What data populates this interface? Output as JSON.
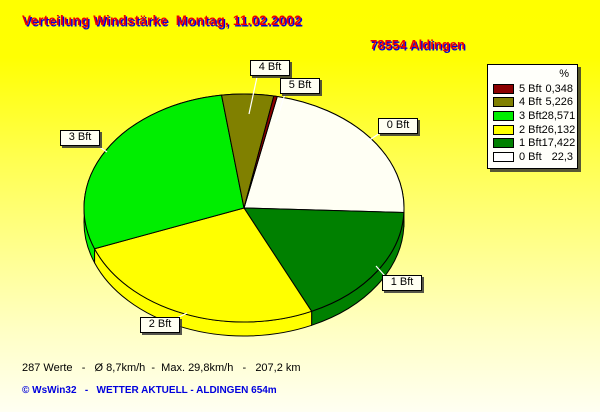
{
  "title": "Verteilung Windstärke  Montag, 11.02.2002",
  "station": "78554 Aldingen",
  "legend": {
    "header": "%"
  },
  "chart_data": {
    "type": "pie",
    "style": "3d-pie",
    "title": "Verteilung Windstärke Montag, 11.02.2002",
    "unit": "%",
    "start_angle_deg": 78,
    "direction": "clockwise",
    "slices": [
      {
        "label": "0 Bft",
        "value": 22.3,
        "display": "22,3",
        "color": "#fffff4"
      },
      {
        "label": "1 Bft",
        "value": 17.422,
        "display": "17,422",
        "color": "#008000"
      },
      {
        "label": "2 Bft",
        "value": 26.132,
        "display": "26,132",
        "color": "#ffff00"
      },
      {
        "label": "3 Bft",
        "value": 28.571,
        "display": "28,571",
        "color": "#00ee00"
      },
      {
        "label": "4 Bft",
        "value": 5.226,
        "display": "5,226",
        "color": "#808000"
      },
      {
        "label": "5 Bft",
        "value": 0.348,
        "display": "0,348",
        "color": "#8b0000"
      }
    ],
    "legend_order": [
      "5 Bft",
      "4 Bft",
      "3 Bft",
      "2 Bft",
      "1 Bft",
      "0 Bft"
    ],
    "legend_swatch_colors": {
      "5 Bft": "#8b0000",
      "4 Bft": "#808000",
      "3 Bft": "#00ee00",
      "2 Bft": "#ffff00",
      "1 Bft": "#008000",
      "0 Bft": "#ffffff"
    }
  },
  "stats_line": "287 Werte   -   Ø 8,7km/h  -  Max. 29,8km/h   -   207,2 km",
  "copyright_line": "© WsWin32   -   WETTER AKTUELL - ALDINGEN 654m",
  "colors": {
    "title_text": "#ee0000",
    "title_shadow": "#0000e0",
    "background_top": "#ffff00",
    "background_bottom": "#fffff2",
    "copyright_text": "#0000dd",
    "outline": "#000000",
    "leader_line": "#ffffff"
  }
}
